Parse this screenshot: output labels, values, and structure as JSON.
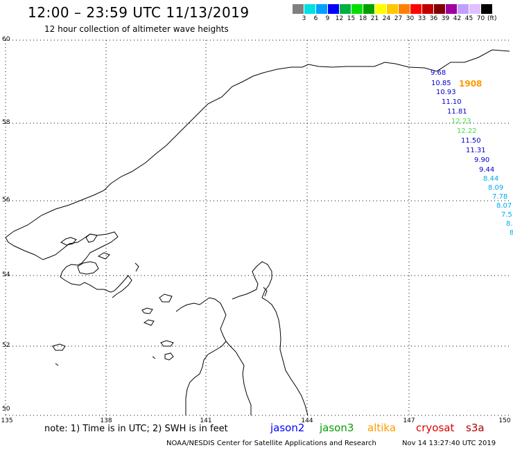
{
  "header": {
    "title": "12:00 – 23:59 UTC 11/13/2019",
    "subtitle": "12 hour collection of altimeter wave heights"
  },
  "color_scale": {
    "colors": [
      "#808080",
      "#00e0e0",
      "#00a0ff",
      "#0000ff",
      "#00b040",
      "#00e000",
      "#00a000",
      "#ffff00",
      "#ffc800",
      "#ff8000",
      "#ff0000",
      "#c00000",
      "#800000",
      "#a000a0",
      "#c0a0ff",
      "#e0c0ff",
      "#000000"
    ],
    "labels": [
      "3",
      "6",
      "9",
      "12",
      "15",
      "18",
      "21",
      "24",
      "27",
      "30",
      "33",
      "36",
      "39",
      "42",
      "45",
      "70"
    ],
    "unit": "(ft)"
  },
  "axes": {
    "lat_labels": [
      "60",
      "58",
      "56",
      "54",
      "52",
      "50"
    ],
    "lon_labels": [
      "135",
      "138",
      "141",
      "144",
      "147",
      "150"
    ]
  },
  "track_values": [
    {
      "text": "9.68",
      "color": "#0000cc"
    },
    {
      "text": "10.85",
      "color": "#0000cc"
    },
    {
      "text": "10.93",
      "color": "#0000cc"
    },
    {
      "text": "11.10",
      "color": "#0000cc"
    },
    {
      "text": "11.81",
      "color": "#0000cc"
    },
    {
      "text": "12.23",
      "color": "#44dd44"
    },
    {
      "text": "12.22",
      "color": "#44dd44"
    },
    {
      "text": "11.50",
      "color": "#0000cc"
    },
    {
      "text": "11.31",
      "color": "#0000cc"
    },
    {
      "text": "9.90",
      "color": "#0000cc"
    },
    {
      "text": "9.44",
      "color": "#0000cc"
    },
    {
      "text": "8.44",
      "color": "#00aaee"
    },
    {
      "text": "8.09",
      "color": "#00aaee"
    },
    {
      "text": "7.78",
      "color": "#00aaee"
    },
    {
      "text": "8.07",
      "color": "#00aaee"
    },
    {
      "text": "7.5",
      "color": "#00aaee"
    },
    {
      "text": "8.",
      "color": "#00aaee"
    },
    {
      "text": "8",
      "color": "#00aaee"
    }
  ],
  "time_marker": {
    "text": "1908",
    "color": "#ff9900"
  },
  "footer": {
    "note": "note: 1) Time is in UTC; 2) SWH is in feet",
    "legend": [
      {
        "name": "jason2",
        "color": "#0000ff"
      },
      {
        "name": "jason3",
        "color": "#00a000"
      },
      {
        "name": "altika",
        "color": "#ff9900"
      },
      {
        "name": "cryosat",
        "color": "#e00000"
      },
      {
        "name": "s3a",
        "color": "#b00000"
      }
    ],
    "credit": "NOAA/NESDIS Center for Satellite Applications and Research",
    "timestamp": "Nov 14 13:27:40 UTC 2019"
  }
}
